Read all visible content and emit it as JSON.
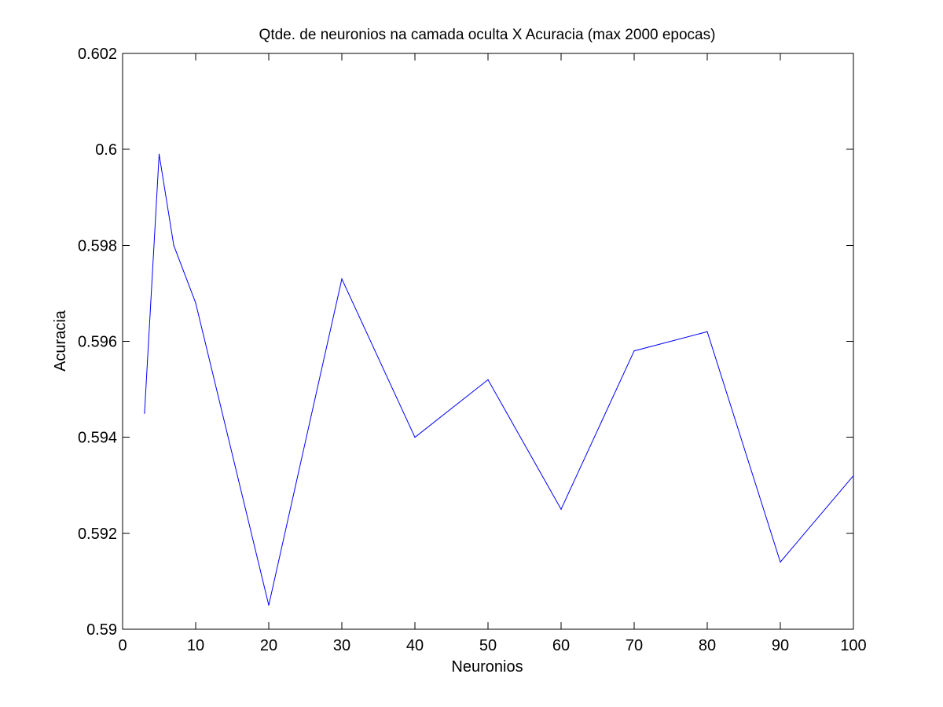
{
  "chart_data": {
    "type": "line",
    "title": "Qtde. de neuronios na camada oculta X Acuracia (max 2000 epocas)",
    "xlabel": "Neuronios",
    "ylabel": "Acuracia",
    "xlim": [
      0,
      100
    ],
    "ylim": [
      0.59,
      0.602
    ],
    "xticks": [
      0,
      10,
      20,
      30,
      40,
      50,
      60,
      70,
      80,
      90,
      100
    ],
    "xtick_labels": [
      "0",
      "10",
      "20",
      "30",
      "40",
      "50",
      "60",
      "70",
      "80",
      "90",
      "100"
    ],
    "yticks": [
      0.59,
      0.592,
      0.594,
      0.596,
      0.598,
      0.6,
      0.602
    ],
    "ytick_labels": [
      "0.59",
      "0.592",
      "0.594",
      "0.596",
      "0.598",
      "0.6",
      "0.602"
    ],
    "grid": false,
    "series": [
      {
        "color": "#0000ff",
        "x": [
          3,
          5,
          7,
          10,
          20,
          30,
          40,
          50,
          60,
          70,
          80,
          90,
          100
        ],
        "y": [
          0.5945,
          0.5999,
          0.598,
          0.5968,
          0.5905,
          0.5973,
          0.594,
          0.5952,
          0.5925,
          0.5958,
          0.5962,
          0.5914,
          0.5932
        ]
      }
    ]
  }
}
